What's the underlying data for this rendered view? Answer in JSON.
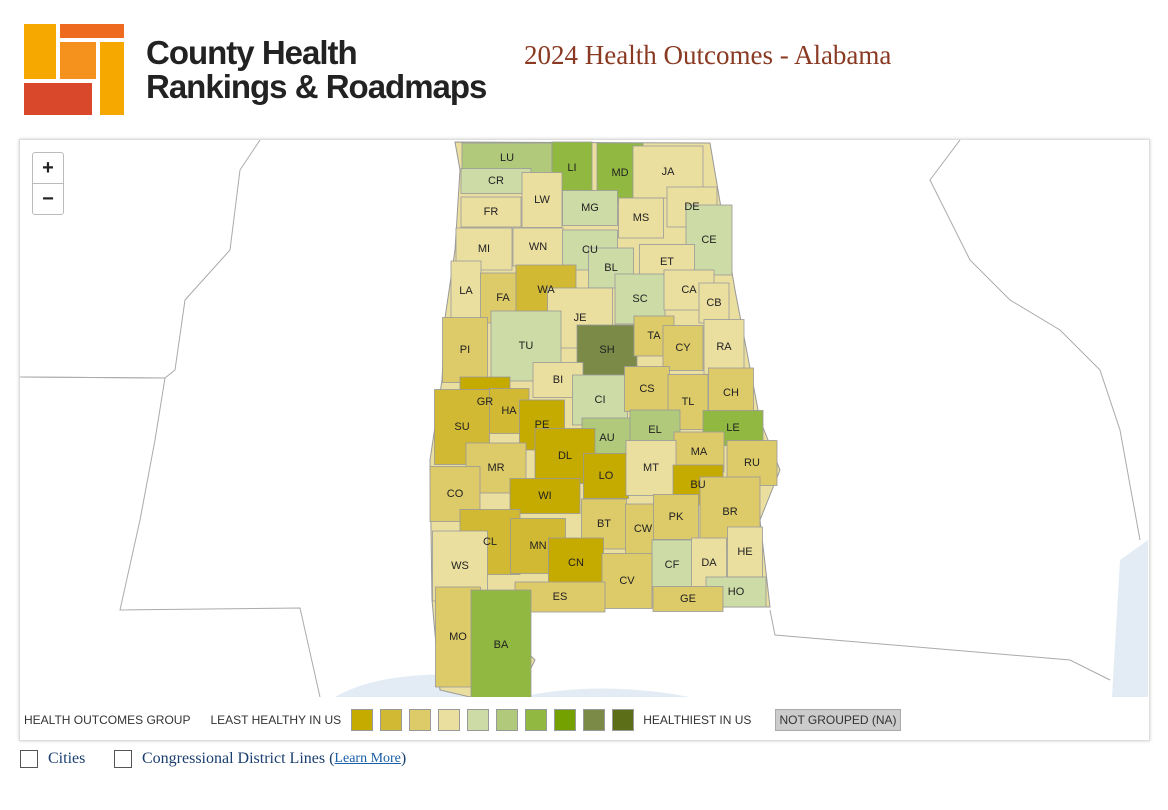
{
  "header": {
    "logo_lines": [
      "County Health",
      "Rankings & Roadmaps"
    ],
    "title": "2024 Health Outcomes - Alabama"
  },
  "map": {
    "zoom_in": "+",
    "zoom_out": "−",
    "counties": [
      {
        "label": "LU",
        "color": "#b0c97a"
      },
      {
        "label": "LI",
        "color": "#91b840"
      },
      {
        "label": "MD",
        "color": "#91b840"
      },
      {
        "label": "JA",
        "color": "#ebdfa0"
      },
      {
        "label": "CR",
        "color": "#cddba6"
      },
      {
        "label": "LW",
        "color": "#ebdfa0"
      },
      {
        "label": "MG",
        "color": "#cddba6"
      },
      {
        "label": "DE",
        "color": "#ebdfa0"
      },
      {
        "label": "MS",
        "color": "#ebdfa0"
      },
      {
        "label": "FR",
        "color": "#ebdfa0"
      },
      {
        "label": "MI",
        "color": "#ebdfa0"
      },
      {
        "label": "WN",
        "color": "#ebdfa0"
      },
      {
        "label": "CU",
        "color": "#cddba6"
      },
      {
        "label": "BL",
        "color": "#cddba6"
      },
      {
        "label": "CE",
        "color": "#cddba6"
      },
      {
        "label": "ET",
        "color": "#ebdfa0"
      },
      {
        "label": "LA",
        "color": "#ebdfa0"
      },
      {
        "label": "FA",
        "color": "#ddca68"
      },
      {
        "label": "WA",
        "color": "#d2b933"
      },
      {
        "label": "SC",
        "color": "#cddba6"
      },
      {
        "label": "CA",
        "color": "#ebdfa0"
      },
      {
        "label": "CB",
        "color": "#ebdfa0"
      },
      {
        "label": "JE",
        "color": "#ebdfa0"
      },
      {
        "label": "TU",
        "color": "#cddba6"
      },
      {
        "label": "SH",
        "color": "#7b8a47"
      },
      {
        "label": "TA",
        "color": "#ddca68"
      },
      {
        "label": "CY",
        "color": "#ddca68"
      },
      {
        "label": "RA",
        "color": "#ebdfa0"
      },
      {
        "label": "PI",
        "color": "#ddca68"
      },
      {
        "label": "BI",
        "color": "#ebdfa0"
      },
      {
        "label": "GR",
        "color": "#c5aa00"
      },
      {
        "label": "HA",
        "color": "#d2b933"
      },
      {
        "label": "CI",
        "color": "#cddba6"
      },
      {
        "label": "CS",
        "color": "#ddca68"
      },
      {
        "label": "TL",
        "color": "#ddca68"
      },
      {
        "label": "CH",
        "color": "#ddca68"
      },
      {
        "label": "SU",
        "color": "#d2b933"
      },
      {
        "label": "PE",
        "color": "#c5aa00"
      },
      {
        "label": "AU",
        "color": "#b0c97a"
      },
      {
        "label": "EL",
        "color": "#b0c97a"
      },
      {
        "label": "LE",
        "color": "#91b840"
      },
      {
        "label": "MA",
        "color": "#ddca68"
      },
      {
        "label": "RU",
        "color": "#ddca68"
      },
      {
        "label": "MR",
        "color": "#ddca68"
      },
      {
        "label": "DL",
        "color": "#c5aa00"
      },
      {
        "label": "LO",
        "color": "#c5aa00"
      },
      {
        "label": "MT",
        "color": "#ebdfa0"
      },
      {
        "label": "BU",
        "color": "#c5aa00"
      },
      {
        "label": "CO",
        "color": "#ddca68"
      },
      {
        "label": "WI",
        "color": "#c5aa00"
      },
      {
        "label": "BT",
        "color": "#ddca68"
      },
      {
        "label": "CW",
        "color": "#ddca68"
      },
      {
        "label": "PK",
        "color": "#ddca68"
      },
      {
        "label": "BR",
        "color": "#ddca68"
      },
      {
        "label": "CL",
        "color": "#d2b933"
      },
      {
        "label": "MN",
        "color": "#d2b933"
      },
      {
        "label": "CN",
        "color": "#c5aa00"
      },
      {
        "label": "WS",
        "color": "#ebdfa0"
      },
      {
        "label": "HE",
        "color": "#ebdfa0"
      },
      {
        "label": "CF",
        "color": "#cddba6"
      },
      {
        "label": "DA",
        "color": "#ebdfa0"
      },
      {
        "label": "CV",
        "color": "#ddca68"
      },
      {
        "label": "HO",
        "color": "#cddba6"
      },
      {
        "label": "ES",
        "color": "#ddca68"
      },
      {
        "label": "GE",
        "color": "#ddca68"
      },
      {
        "label": "MO",
        "color": "#ddca68"
      },
      {
        "label": "BA",
        "color": "#91b840"
      }
    ]
  },
  "legend": {
    "group_label": "HEALTH OUTCOMES GROUP",
    "least": "LEAST HEALTHY IN US",
    "colors": [
      "#c5aa00",
      "#d2b933",
      "#ddca68",
      "#ebdfa0",
      "#cddba6",
      "#b0c97a",
      "#91b840",
      "#74a000",
      "#7b8a47",
      "#5d6e18"
    ],
    "healthiest": "HEALTHIEST IN US",
    "not_grouped": "NOT GROUPED (NA)"
  },
  "options": {
    "cities": "Cities",
    "districts": "Congressional District Lines",
    "link_open": "(",
    "link": "Learn More",
    "link_close": ")"
  }
}
